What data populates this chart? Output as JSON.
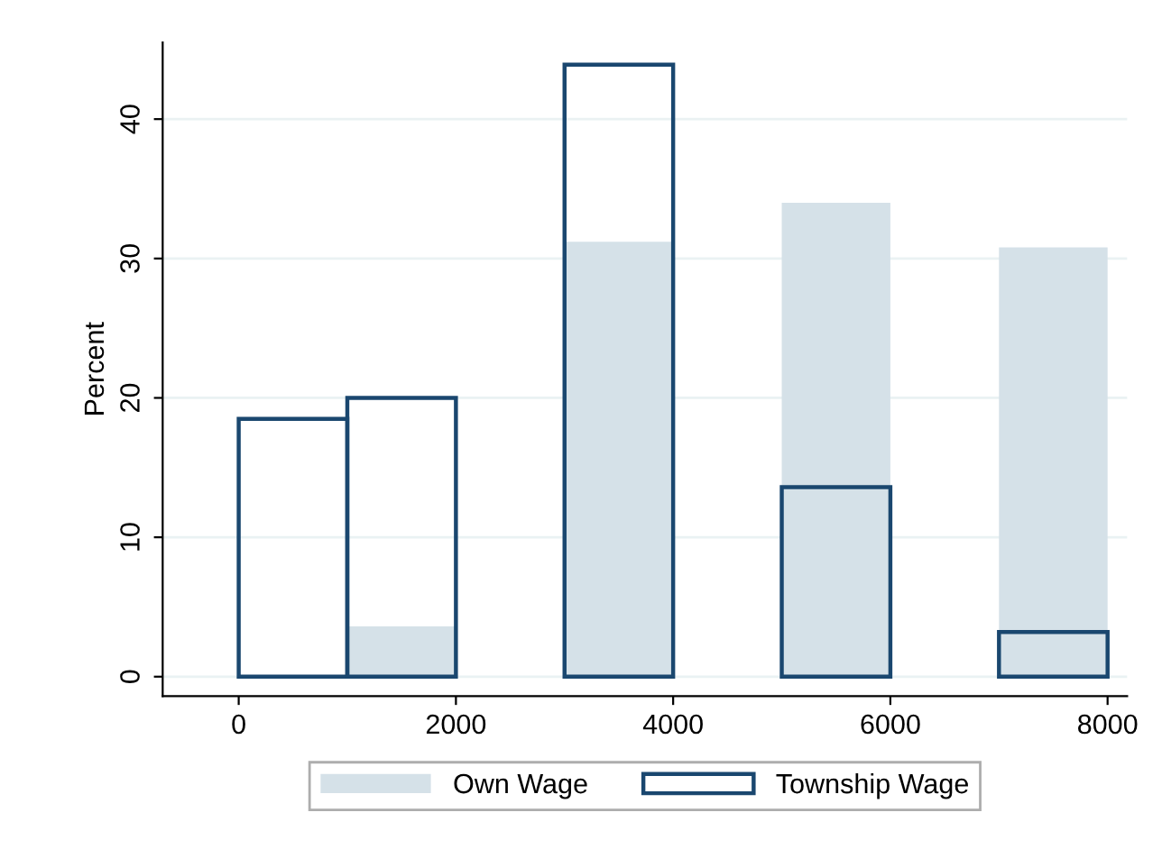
{
  "chart_data": {
    "type": "histogram",
    "ylabel": "Percent",
    "bins": [
      0,
      1000,
      2000,
      3000,
      4000,
      5000,
      6000,
      7000,
      8000
    ],
    "series": [
      {
        "name": "Own Wage",
        "color": "#d5e1e8",
        "values": [
          0,
          3.6,
          0,
          31.2,
          0,
          34.0,
          0,
          30.8
        ]
      },
      {
        "name": "Township Wage",
        "color": "#1a476f",
        "values": [
          18.5,
          20.0,
          0,
          43.9,
          0,
          13.6,
          0,
          3.2
        ]
      }
    ],
    "xlim": [
      -700,
      8180
    ],
    "xticks": [
      0,
      2000,
      4000,
      6000,
      8000
    ],
    "ylim": [
      -1.4,
      45.5
    ],
    "yticks": [
      0,
      10,
      20,
      30,
      40
    ],
    "grid": "y",
    "legend": "bottom"
  }
}
